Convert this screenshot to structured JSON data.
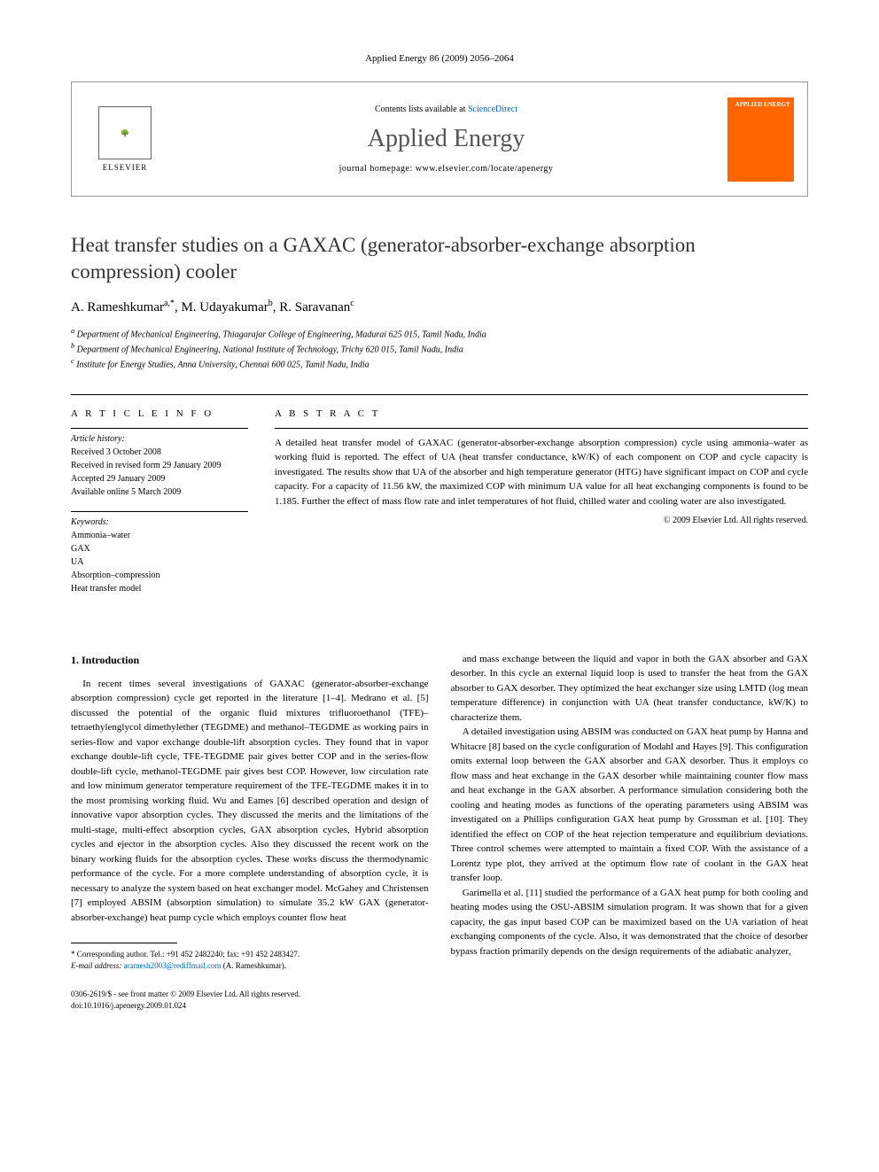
{
  "journal_ref": "Applied Energy 86 (2009) 2056–2064",
  "header": {
    "contents_prefix": "Contents lists available at ",
    "contents_link": "ScienceDirect",
    "journal_name": "Applied Energy",
    "homepage_prefix": "journal homepage: ",
    "homepage_url": "www.elsevier.com/locate/apenergy",
    "publisher": "ELSEVIER",
    "cover_text": "APPLIED ENERGY"
  },
  "title": "Heat transfer studies on a GAXAC (generator-absorber-exchange absorption compression) cooler",
  "authors": [
    {
      "name": "A. Rameshkumar",
      "sup": "a,*"
    },
    {
      "name": "M. Udayakumar",
      "sup": "b"
    },
    {
      "name": "R. Saravanan",
      "sup": "c"
    }
  ],
  "affiliations": [
    {
      "sup": "a",
      "text": "Department of Mechanical Engineering, Thiagarajar College of Engineering, Madurai 625 015, Tamil Nadu, India"
    },
    {
      "sup": "b",
      "text": "Department of Mechanical Engineering, National Institute of Technology, Trichy 620 015, Tamil Nadu, India"
    },
    {
      "sup": "c",
      "text": "Institute for Energy Studies, Anna University, Chennai 600 025, Tamil Nadu, India"
    }
  ],
  "info_heading": "A R T I C L E   I N F O",
  "abstract_heading": "A B S T R A C T",
  "history": {
    "label": "Article history:",
    "lines": [
      "Received 3 October 2008",
      "Received in revised form 29 January 2009",
      "Accepted 29 January 2009",
      "Available online 5 March 2009"
    ]
  },
  "keywords": {
    "label": "Keywords:",
    "items": [
      "Ammonia–water",
      "GAX",
      "UA",
      "Absorption–compression",
      "Heat transfer model"
    ]
  },
  "abstract": "A detailed heat transfer model of GAXAC (generator-absorber-exchange absorption compression) cycle using ammonia–water as working fluid is reported. The effect of UA (heat transfer conductance, kW/K) of each component on COP and cycle capacity is investigated. The results show that UA of the absorber and high temperature generator (HTG) have significant impact on COP and cycle capacity. For a capacity of 11.56 kW, the maximized COP with minimum UA value for all heat exchanging components is found to be 1.185. Further the effect of mass flow rate and inlet temperatures of hot fluid, chilled water and cooling water are also investigated.",
  "copyright": "© 2009 Elsevier Ltd. All rights reserved.",
  "section1_heading": "1. Introduction",
  "body": {
    "col1_p1": "In recent times several investigations of GAXAC (generator-absorber-exchange absorption compression) cycle get reported in the literature [1–4]. Medrano et al. [5] discussed the potential of the organic fluid mixtures trifluoroethanol (TFE)–tetraethylenglycol dimethylether (TEGDME) and methanol–TEGDME as working pairs in series-flow and vapor exchange double-lift absorption cycles. They found that in vapor exchange double-lift cycle, TFE-TEGDME pair gives better COP and in the series-flow double-lift cycle, methanol-TEGDME pair gives best COP. However, low circulation rate and low minimum generator temperature requirement of the TFE-TEGDME makes it in to the most promising working fluid. Wu and Eames [6] described operation and design of innovative vapor absorption cycles. They discussed the merits and the limitations of the multi-stage, multi-effect absorption cycles, GAX absorption cycles, Hybrid absorption cycles and ejector in the absorption cycles. Also they discussed the recent work on the binary working fluids for the absorption cycles. These works discuss the thermodynamic performance of the cycle. For a more complete understanding of absorption cycle, it is necessary to analyze the system based on heat exchanger model. McGahey and Christensen [7] employed ABSIM (absorption simulation) to simulate 35.2 kW GAX (generator-absorber-exchange) heat pump cycle which employs counter flow heat",
    "col2_p1": "and mass exchange between the liquid and vapor in both the GAX absorber and GAX desorber. In this cycle an external liquid loop is used to transfer the heat from the GAX absorber to GAX desorber. They optimized the heat exchanger size using LMTD (log mean temperature difference) in conjunction with UA (heat transfer conductance, kW/K) to characterize them.",
    "col2_p2": "A detailed investigation using ABSIM was conducted on GAX heat pump by Hanna and Whitacre [8] based on the cycle configuration of Modahl and Hayes [9]. This configuration omits external loop between the GAX absorber and GAX desorber. Thus it employs co flow mass and heat exchange in the GAX desorber while maintaining counter flow mass and heat exchange in the GAX absorber. A performance simulation considering both the cooling and heating modes as functions of the operating parameters using ABSIM was investigated on a Phillips configuration GAX heat pump by Grossman et al. [10]. They identified the effect on COP of the heat rejection temperature and equilibrium deviations. Three control schemes were attempted to maintain a fixed COP. With the assistance of a Lorentz type plot, they arrived at the optimum flow rate of coolant in the GAX heat transfer loop.",
    "col2_p3": "Garimella et al. [11] studied the performance of a GAX heat pump for both cooling and heating modes using the OSU-ABSIM simulation program. It was shown that for a given capacity, the gas input based COP can be maximized based on the UA variation of heat exchanging components of the cycle. Also, it was demonstrated that the choice of desorber bypass fraction primarily depends on the design requirements of the adiabatic analyzer,"
  },
  "footnote": {
    "corr": "* Corresponding author. Tel.: +91 452 2482240; fax: +91 452 2483427.",
    "email_label": "E-mail address: ",
    "email": "aramesh2003@rediffmail.com",
    "email_suffix": " (A. Rameshkumar)."
  },
  "footer": {
    "left1": "0306-2619/$ - see front matter © 2009 Elsevier Ltd. All rights reserved.",
    "left2": "doi:10.1016/j.apenergy.2009.01.024"
  },
  "colors": {
    "link": "#0066cc",
    "cover_bg": "#ff6600",
    "text": "#000000",
    "border": "#999999"
  }
}
